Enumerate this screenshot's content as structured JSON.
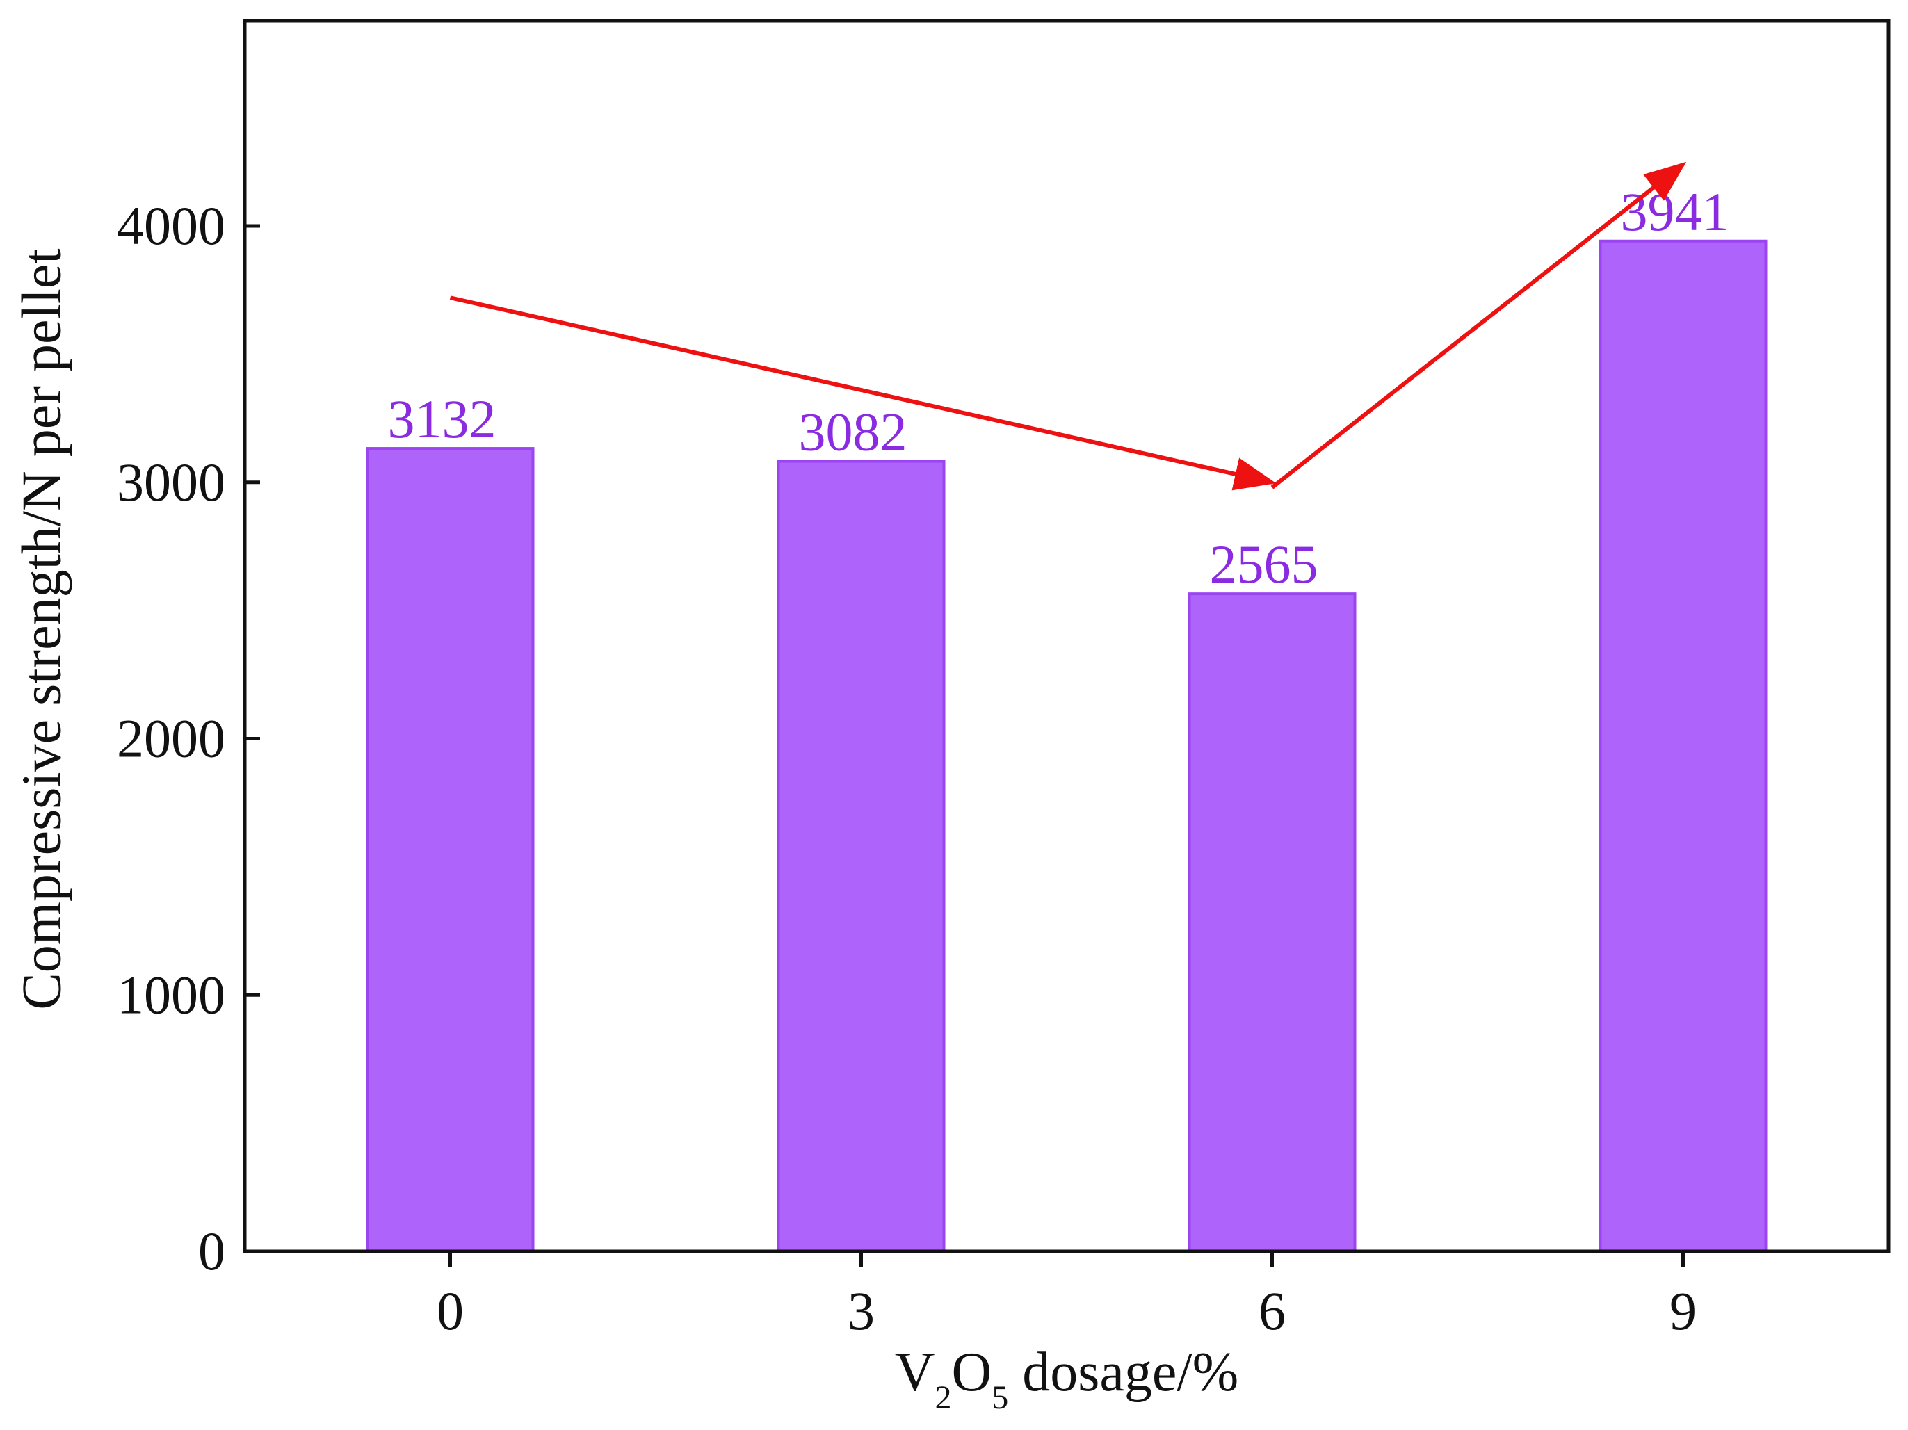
{
  "chart_data": {
    "type": "bar",
    "title": "",
    "categories": [
      "0",
      "3",
      "6",
      "9"
    ],
    "values": [
      3132,
      3082,
      2565,
      3941
    ],
    "data_labels": [
      "3132",
      "3082",
      "2565",
      "3941"
    ],
    "xlabel": {
      "prefix": "V",
      "sub1": "2",
      "mid": "O",
      "sub2": "5",
      "suffix": " dosage/%"
    },
    "ylabel": "Compressive strength/N per pellet",
    "ylim": [
      0,
      4800
    ],
    "yticks": [
      0,
      1000,
      2000,
      3000,
      4000
    ],
    "ytick_labels": [
      "0",
      "1000",
      "2000",
      "3000",
      "4000"
    ],
    "grid": false,
    "legend": "none",
    "annotations": [
      {
        "type": "arrow",
        "from": {
          "x": 0,
          "y": 3720
        },
        "to": {
          "x": 6,
          "y": 3000
        },
        "description": "decreasing trend"
      },
      {
        "type": "arrow",
        "from": {
          "x": 6,
          "y": 2980
        },
        "to": {
          "x": 9,
          "y": 4240
        },
        "description": "increasing trend"
      }
    ],
    "colors": {
      "bar": "#ae63fb",
      "bar_edge": "#9b45f0",
      "label": "#8a2be2",
      "arrow": "#ee1111",
      "axis": "#111111"
    }
  }
}
